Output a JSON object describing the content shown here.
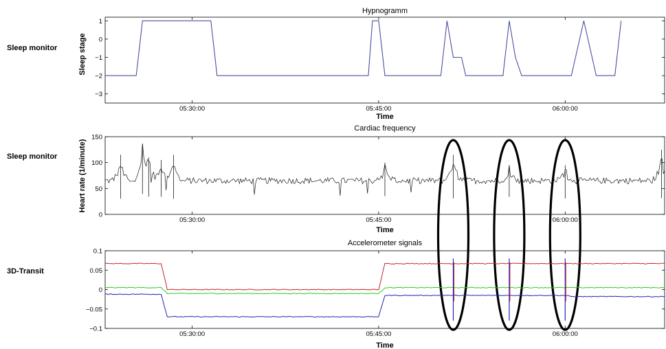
{
  "chart_data": [
    {
      "type": "line",
      "row_label": "Sleep monitor",
      "title": "Hypnogramm",
      "xlabel": "Time",
      "ylabel": "Sleep stage",
      "ylim": [
        -3.5,
        1.2
      ],
      "yticks": [
        1,
        0,
        -1,
        -2,
        -3
      ],
      "ytick_labels": [
        "1",
        "0",
        "−1",
        "−2",
        "−3"
      ],
      "xlim_minutes": [
        5.38,
        6.15
      ],
      "xticks": [
        "05:30:00",
        "05:45:00",
        "06:00:00"
      ],
      "x_start": "05:23:00",
      "x_end": "06:08:00",
      "grid": false,
      "color": "#4a4f9e",
      "series": [
        {
          "x": [
            "05:23:00",
            "05:25:30",
            "05:26:00",
            "05:29:00",
            "05:30:00",
            "05:31:30",
            "05:32:00",
            "05:35:00",
            "05:40:00",
            "05:44:10",
            "05:44:30",
            "05:45:00",
            "05:45:30",
            "05:46:00",
            "05:50:00",
            "05:50:30",
            "05:51:00",
            "05:51:40",
            "05:52:00",
            "05:52:30",
            "05:55:00",
            "05:55:30",
            "05:56:00",
            "05:56:30",
            "05:58:00",
            "06:00:00",
            "06:00:30",
            "06:01:30",
            "06:02:30",
            "06:03:00",
            "06:04:00",
            "06:04:30"
          ],
          "y": [
            -2,
            -2,
            1,
            1,
            1,
            1,
            -2,
            -2,
            -2,
            -2,
            1,
            1,
            -2,
            -2,
            -2,
            1,
            -1,
            -1,
            -2,
            -2,
            -2,
            1,
            -1,
            -2,
            -2,
            -2,
            -2,
            1,
            -2,
            -2,
            -2,
            1
          ]
        }
      ]
    },
    {
      "type": "line",
      "row_label": "Sleep monitor",
      "title": "Cardiac frequency",
      "xlabel": "Time",
      "ylabel": "Heart rate (1/minute)",
      "ylim": [
        0,
        150
      ],
      "yticks": [
        150,
        100,
        50,
        0
      ],
      "ytick_labels": [
        "150",
        "100",
        "50",
        "0"
      ],
      "xticks": [
        "05:30:00",
        "05:45:00",
        "06:00:00"
      ],
      "x_start": "05:23:00",
      "x_end": "06:08:00",
      "grid": false,
      "color": "#1a1a1a",
      "baseline_bpm": 65,
      "spikes": [
        {
          "time": "05:24:15",
          "value": 115
        },
        {
          "time": "05:26:00",
          "value": 135
        },
        {
          "time": "05:26:30",
          "value": 110
        },
        {
          "time": "05:27:30",
          "value": 105
        },
        {
          "time": "05:28:30",
          "value": 115
        },
        {
          "time": "05:45:30",
          "value": 100
        },
        {
          "time": "05:51:00",
          "value": 115
        },
        {
          "time": "05:55:30",
          "value": 95
        },
        {
          "time": "06:00:00",
          "value": 95
        },
        {
          "time": "06:07:45",
          "value": 125
        }
      ],
      "highlight_ellipses_at": [
        "05:51:00",
        "05:55:30",
        "06:00:00"
      ]
    },
    {
      "type": "line",
      "row_label": "3D-Transit",
      "title": "Accelerometer signals",
      "xlabel": "Time",
      "ylabel": "",
      "ylim": [
        -0.1,
        0.1
      ],
      "yticks": [
        0.1,
        0.05,
        0,
        -0.05,
        -0.1
      ],
      "ytick_labels": [
        "0.1",
        "0.05",
        "0",
        "−0.05",
        "−0.1"
      ],
      "xticks": [
        "05:30:00",
        "05:45:00",
        "06:00:00"
      ],
      "x_start": "05:23:00",
      "x_end": "06:08:00",
      "grid": false,
      "series": [
        {
          "color": "#cc2222",
          "x": [
            "05:23:00",
            "05:27:30",
            "05:28:00",
            "05:45:00",
            "05:45:30",
            "06:08:00"
          ],
          "y": [
            0.067,
            0.067,
            0.0,
            0.0,
            0.067,
            0.067
          ]
        },
        {
          "color": "#22cc22",
          "x": [
            "05:23:00",
            "05:27:30",
            "05:28:00",
            "05:45:00",
            "05:45:30",
            "06:08:00"
          ],
          "y": [
            0.005,
            0.005,
            -0.01,
            -0.01,
            0.005,
            0.005
          ]
        },
        {
          "color": "#2222bb",
          "x": [
            "05:23:00",
            "05:27:30",
            "05:28:00",
            "05:45:00",
            "05:45:30",
            "06:00:00",
            "06:00:30",
            "06:08:00"
          ],
          "y": [
            -0.012,
            -0.012,
            -0.07,
            -0.07,
            -0.015,
            -0.015,
            -0.018,
            -0.018
          ]
        }
      ],
      "highlight_ellipses_at": [
        "05:51:00",
        "05:55:30",
        "06:00:00"
      ]
    }
  ]
}
